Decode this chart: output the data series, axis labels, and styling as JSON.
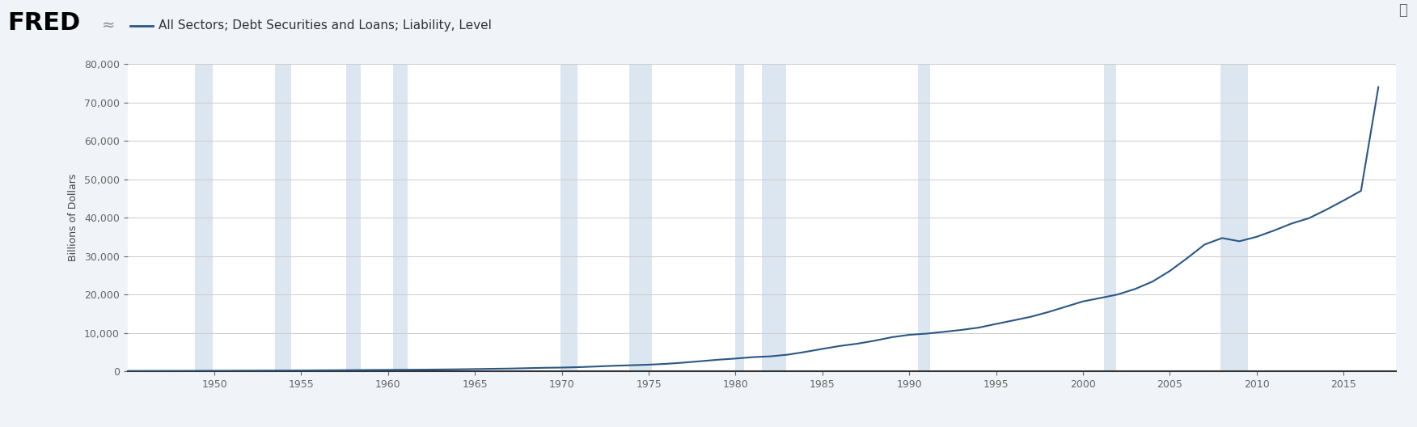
{
  "title": "All Sectors; Debt Securities and Loans; Liability, Level",
  "ylabel": "Billions of Dollars",
  "fred_label": "All Sectors; Debt Securities and Loans; Liability, Level",
  "line_color": "#2a5783",
  "background_color": "#f0f4f8",
  "plot_bg_color": "#ffffff",
  "shading_color": "#dce6f0",
  "ylim": [
    0,
    80000
  ],
  "yticks": [
    0,
    10000,
    20000,
    30000,
    40000,
    50000,
    60000,
    70000,
    80000
  ],
  "xstart": 1945,
  "xend": 2018,
  "xticks": [
    1950,
    1955,
    1960,
    1965,
    1970,
    1975,
    1980,
    1985,
    1990,
    1995,
    2000,
    2005,
    2010,
    2015
  ],
  "recession_bands": [
    [
      1948.9,
      1949.9
    ],
    [
      1953.5,
      1954.4
    ],
    [
      1957.6,
      1958.4
    ],
    [
      1960.3,
      1961.1
    ],
    [
      1969.9,
      1970.9
    ],
    [
      1973.9,
      1975.2
    ],
    [
      1980.0,
      1980.5
    ],
    [
      1981.5,
      1982.9
    ],
    [
      1990.5,
      1991.2
    ],
    [
      2001.2,
      2001.9
    ],
    [
      2007.9,
      2009.5
    ]
  ],
  "data_years": [
    1945,
    1946,
    1947,
    1948,
    1949,
    1950,
    1951,
    1952,
    1953,
    1954,
    1955,
    1956,
    1957,
    1958,
    1959,
    1960,
    1961,
    1962,
    1963,
    1964,
    1965,
    1966,
    1967,
    1968,
    1969,
    1970,
    1971,
    1972,
    1973,
    1974,
    1975,
    1976,
    1977,
    1978,
    1979,
    1980,
    1981,
    1982,
    1983,
    1984,
    1985,
    1986,
    1987,
    1988,
    1989,
    1990,
    1991,
    1992,
    1993,
    1994,
    1995,
    1996,
    1997,
    1998,
    1999,
    2000,
    2001,
    2002,
    2003,
    2004,
    2005,
    2006,
    2007,
    2008,
    2009,
    2010,
    2011,
    2012,
    2013,
    2014,
    2015,
    2016,
    2017
  ],
  "data_values": [
    141,
    147,
    154,
    163,
    172,
    186,
    208,
    225,
    241,
    250,
    277,
    305,
    326,
    353,
    393,
    419,
    445,
    481,
    520,
    567,
    630,
    701,
    763,
    864,
    964,
    1020,
    1138,
    1305,
    1491,
    1622,
    1775,
    1993,
    2306,
    2685,
    3065,
    3370,
    3736,
    3942,
    4381,
    5085,
    5883,
    6637,
    7230,
    8010,
    8929,
    9539,
    9862,
    10322,
    10817,
    11422,
    12378,
    13303,
    14248,
    15467,
    16855,
    18244,
    19126,
    20046,
    21472,
    23399,
    26171,
    29518,
    33037,
    34724,
    33889,
    35059,
    36696,
    38491,
    39885,
    42100,
    44500,
    47000,
    74000
  ]
}
